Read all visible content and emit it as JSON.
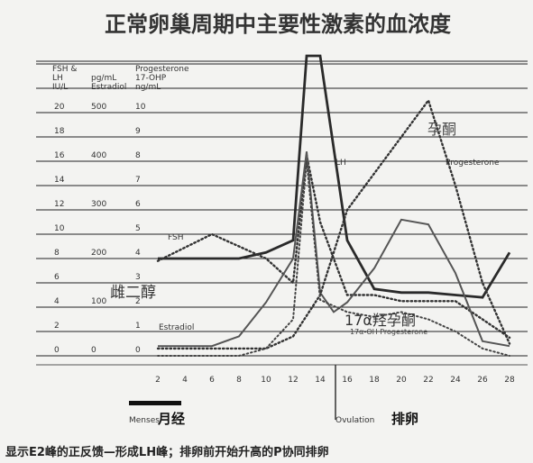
{
  "chart_data": {
    "type": "line",
    "title": "正常卵巢周期中主要性激素的血浓度",
    "axis_headers": [
      {
        "line1": "FSH &",
        "line2": "LH",
        "line3": "IU/L"
      },
      {
        "line1": "Estradiol",
        "line2": "pg/mL",
        "line3": ""
      },
      {
        "line1": "Progesterone",
        "line2": "17-OHP",
        "line3": "ng/mL"
      }
    ],
    "y_ticks_fsh_lh": [
      "20",
      "18",
      "16",
      "14",
      "12",
      "10",
      "8",
      "6",
      "4",
      "2",
      "0"
    ],
    "y_ticks_estradiol": [
      "500",
      "400",
      "300",
      "200",
      "100",
      "0"
    ],
    "y_ticks_progesterone": [
      "10",
      "9",
      "8",
      "7",
      "6",
      "5",
      "4",
      "3",
      "2",
      "1",
      "0"
    ],
    "x_ticks": [
      "2",
      "4",
      "6",
      "8",
      "10",
      "12",
      "14",
      "16",
      "18",
      "20",
      "22",
      "24",
      "26",
      "28"
    ],
    "series": [
      {
        "name": "LH",
        "style": "solid-thick",
        "x": [
          2,
          4,
          6,
          8,
          10,
          12,
          13,
          14,
          16,
          18,
          20,
          22,
          24,
          26,
          28
        ],
        "y": [
          8,
          8,
          8,
          8,
          8.5,
          9.5,
          25,
          25,
          9.5,
          5.5,
          5.2,
          5.2,
          5,
          4.8,
          8.5
        ]
      },
      {
        "name": "FSH",
        "style": "dotted",
        "x": [
          2,
          6,
          10,
          12,
          13,
          14,
          16,
          18,
          20,
          22,
          24,
          26,
          28
        ],
        "y": [
          7.8,
          10,
          8,
          6,
          16.5,
          11,
          5,
          5,
          4.5,
          4.5,
          4.5,
          3,
          1.5
        ]
      },
      {
        "name": "Estradiol",
        "style": "solid",
        "x": [
          2,
          4,
          6,
          8,
          10,
          12,
          13,
          14,
          15,
          16,
          18,
          20,
          22,
          24,
          26,
          28
        ],
        "y": [
          20,
          20,
          20,
          40,
          110,
          200,
          420,
          130,
          90,
          110,
          180,
          280,
          270,
          170,
          30,
          20
        ]
      },
      {
        "name": "Progesterone",
        "style": "dotted",
        "x": [
          2,
          4,
          6,
          8,
          10,
          12,
          14,
          16,
          18,
          20,
          22,
          24,
          26,
          28
        ],
        "y": [
          0.3,
          0.3,
          0.3,
          0.3,
          0.3,
          0.8,
          2.5,
          6,
          7.5,
          9,
          10.5,
          7,
          3,
          0.5
        ]
      },
      {
        "name": "17α-OHP",
        "style": "dotted-light",
        "x": [
          2,
          4,
          6,
          8,
          10,
          12,
          13,
          14,
          16,
          18,
          20,
          22,
          24,
          26,
          28
        ],
        "y": [
          0,
          0,
          0,
          0,
          0.3,
          1.5,
          8,
          2.3,
          1.8,
          1.6,
          1.8,
          1.5,
          1,
          0.3,
          0
        ]
      }
    ],
    "series_labels": {
      "lh": "LH",
      "progesterone": "Progesterone",
      "progesterone_cn": "孕酮",
      "fsh": "FSH",
      "estradiol": "Estradiol",
      "estradiol_cn": "雌二醇",
      "ohp_cn": "17α羟孕酮",
      "ohp": "17α-OH Progesterone"
    },
    "annotations": {
      "menses": "Menses",
      "menses_cn": "月经",
      "ovulation": "Ovulation",
      "ovulation_cn": "排卵"
    },
    "caption": "显示E2峰的正反馈—形成LH峰；排卵前开始升高的P协同排卵",
    "grid": true
  }
}
